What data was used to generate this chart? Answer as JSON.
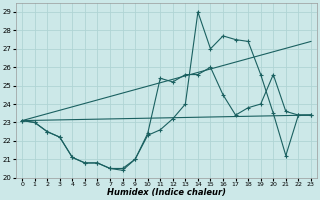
{
  "xlabel": "Humidex (Indice chaleur)",
  "bg_color": "#cce8e8",
  "grid_color": "#b0d4d4",
  "line_color": "#1a6060",
  "xlim": [
    -0.5,
    23.5
  ],
  "ylim": [
    20,
    29.5
  ],
  "yticks": [
    20,
    21,
    22,
    23,
    24,
    25,
    26,
    27,
    28,
    29
  ],
  "xticks": [
    0,
    1,
    2,
    3,
    4,
    5,
    6,
    7,
    8,
    9,
    10,
    11,
    12,
    13,
    14,
    15,
    16,
    17,
    18,
    19,
    20,
    21,
    22,
    23
  ],
  "lines": [
    {
      "x": [
        0,
        1,
        2,
        3,
        4,
        5,
        6,
        7,
        8,
        9,
        10,
        11,
        12,
        13,
        14,
        15,
        16,
        17,
        18,
        19,
        20,
        21,
        22,
        23
      ],
      "y": [
        23.1,
        23.0,
        22.5,
        22.2,
        21.1,
        20.8,
        20.8,
        20.5,
        20.5,
        21.0,
        22.3,
        22.6,
        23.2,
        24.0,
        29.0,
        27.0,
        27.7,
        27.5,
        27.4,
        25.6,
        23.5,
        21.2,
        23.4,
        23.4
      ],
      "marker": "+"
    },
    {
      "x": [
        0,
        1,
        2,
        3,
        4,
        5,
        6,
        7,
        8,
        9,
        10,
        11,
        12,
        13,
        14,
        15,
        16,
        17,
        18,
        19,
        20,
        21,
        22,
        23
      ],
      "y": [
        23.1,
        23.0,
        22.5,
        22.2,
        21.1,
        20.8,
        20.8,
        20.5,
        20.4,
        21.0,
        22.4,
        25.4,
        25.2,
        25.6,
        25.6,
        26.0,
        24.5,
        23.4,
        23.8,
        24.0,
        25.6,
        23.6,
        23.4,
        23.4
      ],
      "marker": "+"
    },
    {
      "x": [
        0,
        23
      ],
      "y": [
        23.1,
        27.4
      ],
      "marker": null
    },
    {
      "x": [
        0,
        23
      ],
      "y": [
        23.1,
        23.4
      ],
      "marker": null
    }
  ]
}
